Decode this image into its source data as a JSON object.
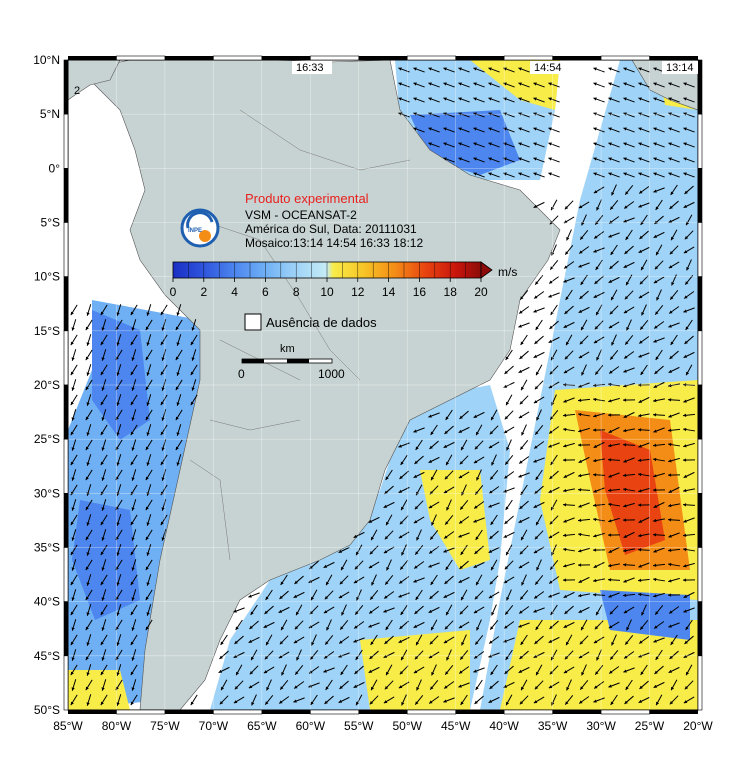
{
  "axes": {
    "lat_labels": [
      "10°N",
      "5°N",
      "0°",
      "5°S",
      "10°S",
      "15°S",
      "20°S",
      "25°S",
      "30°S",
      "35°S",
      "40°S",
      "45°S",
      "50°S"
    ],
    "lon_labels": [
      "85°W",
      "80°W",
      "75°W",
      "70°W",
      "65°W",
      "60°W",
      "55°W",
      "50°W",
      "45°W",
      "40°W",
      "35°W",
      "30°W",
      "25°W",
      "20°W"
    ]
  },
  "pass_times": [
    "16:33",
    "14:54",
    "13:14"
  ],
  "corner_label": "2",
  "legend": {
    "experimental": "Produto experimental",
    "title": "VSM - OCEANSAT-2",
    "region_date": "América do Sul, Data: 20111031",
    "mosaic": "Mosaico:13:14 14:54 16:33 18:12",
    "unit": "m/s",
    "ticks": [
      "0",
      "2",
      "4",
      "6",
      "8",
      "10",
      "12",
      "14",
      "16",
      "18",
      "20"
    ],
    "no_data": "Ausência de dados",
    "scale_unit": "km",
    "scale_start": "0",
    "scale_end": "1000",
    "logo_text": "INPE"
  },
  "colors": {
    "land": "#c7d3d2",
    "no_data": "#ffffff",
    "colorbar": [
      "#1a2fc4",
      "#2f55dd",
      "#4c86ee",
      "#6fb0f5",
      "#9fd3f7",
      "#c6ecf6",
      "#f8ec49",
      "#f7c426",
      "#f48d16",
      "#e84310",
      "#c8150c",
      "#8c0b08"
    ]
  }
}
